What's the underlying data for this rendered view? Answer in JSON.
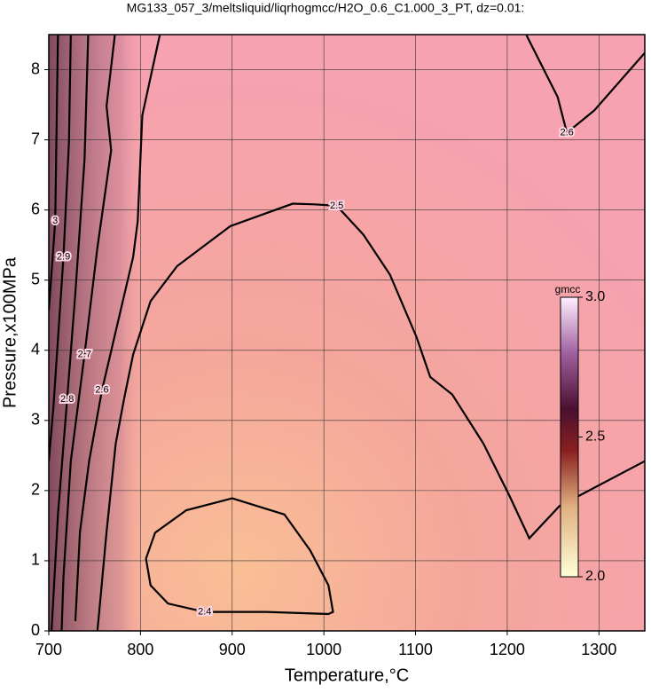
{
  "chart_data": {
    "type": "contour",
    "title": "MG133_057_3/meltsliquid/liqrhogmcc/H2O_0.6_C1.000_3_PT, dz=0.01:",
    "xlabel": "Temperature,°C",
    "ylabel": "Pressure,x100MPa",
    "xlim": [
      700,
      1350
    ],
    "ylim": [
      0,
      8.5
    ],
    "xticks": [
      700,
      800,
      900,
      1000,
      1100,
      1200,
      1300
    ],
    "yticks": [
      0,
      1,
      2,
      3,
      4,
      5,
      6,
      7,
      8
    ],
    "grid": true,
    "line_color": "#000000",
    "colorbar": {
      "label": "gmcc",
      "lim": [
        2.0,
        3.0
      ],
      "ticks": [
        {
          "value": 2.0,
          "label": "2.0"
        },
        {
          "value": 2.5,
          "label": "2.5"
        },
        {
          "value": 3.0,
          "label": "3.0"
        }
      ]
    },
    "contours": [
      {
        "level": 2.4,
        "x": [
          900,
          957,
          985,
          1005,
          1010,
          1005,
          937,
          870,
          830,
          811,
          806,
          816,
          850,
          900
        ],
        "y": [
          1.89,
          1.66,
          1.15,
          0.65,
          0.27,
          0.24,
          0.27,
          0.27,
          0.39,
          0.65,
          1.03,
          1.4,
          1.72,
          1.89
        ]
      },
      {
        "level": 2.5,
        "x": [
          753,
          755,
          763,
          773,
          782,
          792,
          811,
          840,
          898,
          966,
          990,
          1014,
          1043,
          1072,
          1101,
          1116,
          1140,
          1174,
          1203,
          1224,
          1257,
          1350
        ],
        "y": [
          0,
          0.27,
          1.41,
          2.67,
          3.3,
          3.94,
          4.7,
          5.2,
          5.77,
          6.09,
          6.08,
          6.06,
          5.65,
          5.08,
          4.19,
          3.62,
          3.37,
          2.67,
          1.91,
          1.32,
          1.78,
          2.42
        ]
      },
      {
        "level": 2.6,
        "x": [
          821,
          802,
          797,
          792,
          758,
          744,
          734,
          729
        ],
        "y": [
          8.49,
          7.35,
          5.84,
          5.33,
          3.43,
          2.42,
          1.41,
          0.14
        ]
      },
      {
        "level": 2.6,
        "x": [
          1221,
          1255,
          1265,
          1295,
          1350
        ],
        "y": [
          8.49,
          7.61,
          7.1,
          7.42,
          8.24
        ]
      },
      {
        "level": 2.7,
        "x": [
          772,
          763,
          768,
          753,
          739,
          724,
          716,
          714
        ],
        "y": [
          8.49,
          7.48,
          6.85,
          5.46,
          3.94,
          2.42,
          0.77,
          0
        ]
      },
      {
        "level": 2.8,
        "x": [
          743,
          739,
          729,
          720,
          710,
          703
        ],
        "y": [
          8.49,
          6.72,
          4.82,
          3.3,
          1.66,
          0
        ]
      },
      {
        "level": 2.9,
        "x": [
          724,
          722,
          716,
          705,
          700
        ],
        "y": [
          8.49,
          6.97,
          5.33,
          3.18,
          2.42
        ]
      },
      {
        "level": 3,
        "x": [
          710,
          707,
          700
        ],
        "y": [
          8.49,
          5.84,
          4.56
        ]
      }
    ]
  }
}
